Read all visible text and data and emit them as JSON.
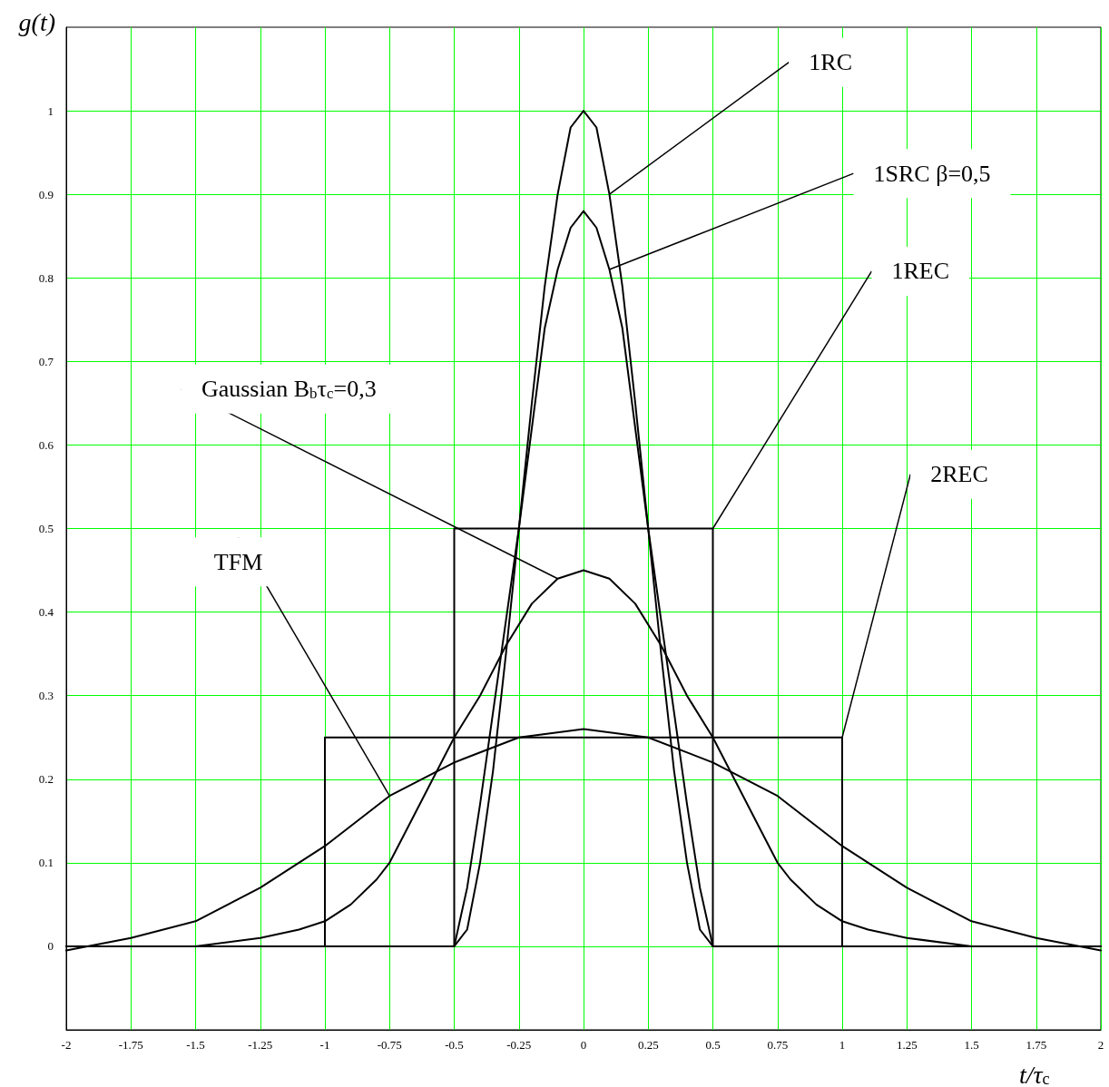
{
  "chart_data": {
    "type": "line",
    "xlabel": "t/τ$_{c}$",
    "ylabel": "g(t)",
    "xlim": [
      -2,
      2
    ],
    "xticks": [
      -2,
      -1.75,
      -1.5,
      -1.25,
      -1,
      -0.75,
      -0.5,
      -0.25,
      0,
      0.25,
      0.5,
      0.75,
      1,
      1.25,
      1.5,
      1.75,
      2
    ],
    "ylim": [
      -0.1,
      1.1
    ],
    "yticks": [
      0,
      0.1,
      0.2,
      0.3,
      0.4,
      0.5,
      0.6,
      0.7,
      0.8,
      0.9,
      1
    ],
    "grid": true,
    "legend": false,
    "marker": "none",
    "line_style": "solid",
    "series": [
      {
        "name": "1RC",
        "color": "#000000",
        "x": [
          -2,
          -0.5,
          -0.45,
          -0.4,
          -0.35,
          -0.3,
          -0.25,
          -0.2,
          -0.15,
          -0.1,
          -0.05,
          0,
          0.05,
          0.1,
          0.15,
          0.2,
          0.25,
          0.3,
          0.35,
          0.4,
          0.45,
          0.5,
          2
        ],
        "values": [
          0,
          0,
          0.02,
          0.1,
          0.21,
          0.35,
          0.5,
          0.65,
          0.79,
          0.9,
          0.98,
          1,
          0.98,
          0.9,
          0.79,
          0.65,
          0.5,
          0.35,
          0.21,
          0.1,
          0.02,
          0,
          0
        ]
      },
      {
        "name": "1SRC β=0,5",
        "color": "#000000",
        "x": [
          -2,
          -0.5,
          -0.45,
          -0.4,
          -0.35,
          -0.3,
          -0.25,
          -0.2,
          -0.15,
          -0.1,
          -0.05,
          0,
          0.05,
          0.1,
          0.15,
          0.2,
          0.25,
          0.3,
          0.35,
          0.4,
          0.45,
          0.5,
          2
        ],
        "values": [
          0,
          0,
          0.07,
          0.17,
          0.28,
          0.39,
          0.5,
          0.62,
          0.74,
          0.81,
          0.86,
          0.88,
          0.86,
          0.81,
          0.74,
          0.62,
          0.5,
          0.39,
          0.28,
          0.17,
          0.07,
          0,
          0
        ]
      },
      {
        "name": "1REC",
        "color": "#000000",
        "x": [
          -2,
          -0.5,
          -0.5,
          0.5,
          0.5,
          2
        ],
        "values": [
          0,
          0,
          0.5,
          0.5,
          0,
          0
        ]
      },
      {
        "name": "Gaussian B$_{b}$τ$_{c}$=0,3",
        "color": "#000000",
        "x": [
          -2,
          -1.75,
          -1.5,
          -1.25,
          -1.1,
          -1,
          -0.9,
          -0.8,
          -0.75,
          -0.7,
          -0.6,
          -0.5,
          -0.4,
          -0.3,
          -0.2,
          -0.1,
          0,
          0.1,
          0.2,
          0.3,
          0.4,
          0.5,
          0.6,
          0.7,
          0.75,
          0.8,
          0.9,
          1,
          1.1,
          1.25,
          1.5,
          1.75,
          2
        ],
        "values": [
          0,
          0,
          0,
          0.01,
          0.02,
          0.03,
          0.05,
          0.08,
          0.1,
          0.13,
          0.19,
          0.25,
          0.3,
          0.36,
          0.41,
          0.44,
          0.45,
          0.44,
          0.41,
          0.36,
          0.3,
          0.25,
          0.19,
          0.13,
          0.1,
          0.08,
          0.05,
          0.03,
          0.02,
          0.01,
          0,
          0,
          0
        ]
      },
      {
        "name": "2REC",
        "color": "#000000",
        "x": [
          -2,
          -1,
          -1,
          1,
          1,
          2
        ],
        "values": [
          0,
          0,
          0.25,
          0.25,
          0,
          0
        ]
      },
      {
        "name": "TFM",
        "color": "#000000",
        "x": [
          -2,
          -1.75,
          -1.5,
          -1.25,
          -1,
          -0.75,
          -0.5,
          -0.25,
          0,
          0.25,
          0.5,
          0.75,
          1,
          1.25,
          1.5,
          1.75,
          2
        ],
        "values": [
          -0.005,
          0.01,
          0.03,
          0.07,
          0.12,
          0.18,
          0.22,
          0.25,
          0.26,
          0.25,
          0.22,
          0.18,
          0.12,
          0.07,
          0.03,
          0.01,
          -0.005
        ]
      }
    ]
  }
}
